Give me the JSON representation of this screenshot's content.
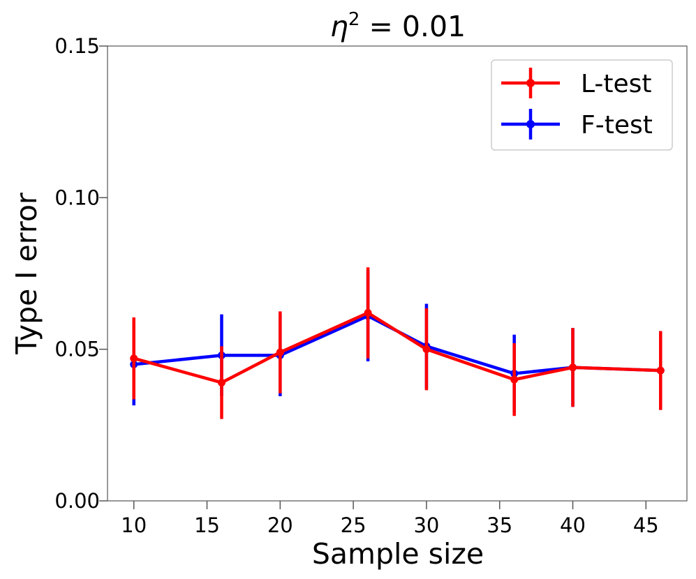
{
  "chart_data": {
    "type": "line",
    "title": "η² = 0.01",
    "title_symbol": "η",
    "title_exponent": "2",
    "title_rest": " = 0.01",
    "xlabel": "Sample size",
    "ylabel": "Type I error",
    "xlim": [
      8.2,
      47.8
    ],
    "ylim": [
      0,
      0.15
    ],
    "xticks": [
      10,
      15,
      20,
      25,
      30,
      35,
      40,
      45
    ],
    "xtick_labels": [
      "10",
      "15",
      "20",
      "25",
      "30",
      "35",
      "40",
      "45"
    ],
    "yticks": [
      0,
      0.05,
      0.1,
      0.15
    ],
    "ytick_labels": [
      "0.00",
      "0.05",
      "0.10",
      "0.15"
    ],
    "grid": false,
    "legend_position": "top-right",
    "series": [
      {
        "name": "F-test",
        "color": "#0000ff",
        "x": [
          10,
          16,
          20,
          26,
          30,
          36,
          40,
          46
        ],
        "y": [
          0.045,
          0.048,
          0.048,
          0.061,
          0.051,
          0.042,
          0.044,
          0.043
        ],
        "yerr": [
          0.0135,
          0.0135,
          0.0135,
          0.015,
          0.014,
          0.0128,
          0.013,
          0.013
        ]
      },
      {
        "name": "L-test",
        "color": "#ff0000",
        "x": [
          10,
          16,
          20,
          26,
          30,
          36,
          40,
          46
        ],
        "y": [
          0.047,
          0.039,
          0.049,
          0.062,
          0.05,
          0.04,
          0.044,
          0.043
        ],
        "yerr": [
          0.0135,
          0.012,
          0.0135,
          0.015,
          0.0135,
          0.012,
          0.013,
          0.013
        ]
      }
    ],
    "legend_order": [
      "L-test",
      "F-test"
    ]
  }
}
